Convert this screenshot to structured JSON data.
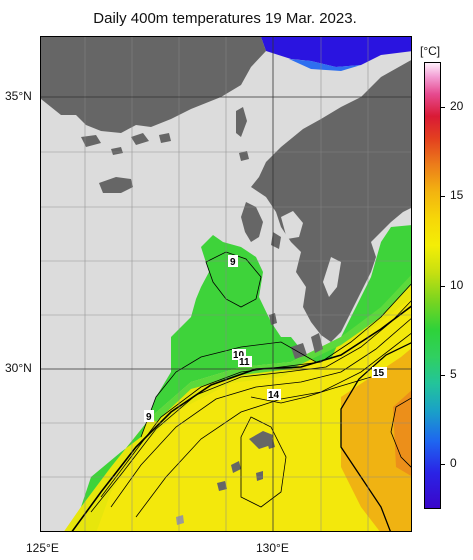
{
  "title": "Daily 400m temperatures 19 Mar. 2023.",
  "axes": {
    "lat_labels": [
      {
        "text": "35°N",
        "value": 35
      },
      {
        "text": "30°N",
        "value": 30
      }
    ],
    "lon_labels": [
      {
        "text": "125°E",
        "value": 125
      },
      {
        "text": "130°E",
        "value": 130
      }
    ]
  },
  "colorbar": {
    "unit": "[°C]",
    "ticks": [
      {
        "text": "20",
        "value": 20
      },
      {
        "text": "15",
        "value": 15
      },
      {
        "text": "10",
        "value": 10
      },
      {
        "text": "5",
        "value": 5
      },
      {
        "text": "0",
        "value": 0
      }
    ],
    "min": -2.5,
    "max": 22.5
  },
  "contour_labels": [
    {
      "text": "9"
    },
    {
      "text": "9"
    },
    {
      "text": "10"
    },
    {
      "text": "11"
    },
    {
      "text": "14"
    },
    {
      "text": "15"
    }
  ],
  "colors": {
    "land": "#666666",
    "no_data": "#dcdcdc",
    "cold_water": "#3ed33a",
    "warm_water": "#f3e80c",
    "very_warm_water": "#f0b312",
    "deep_blue": "#2a14e0"
  }
}
